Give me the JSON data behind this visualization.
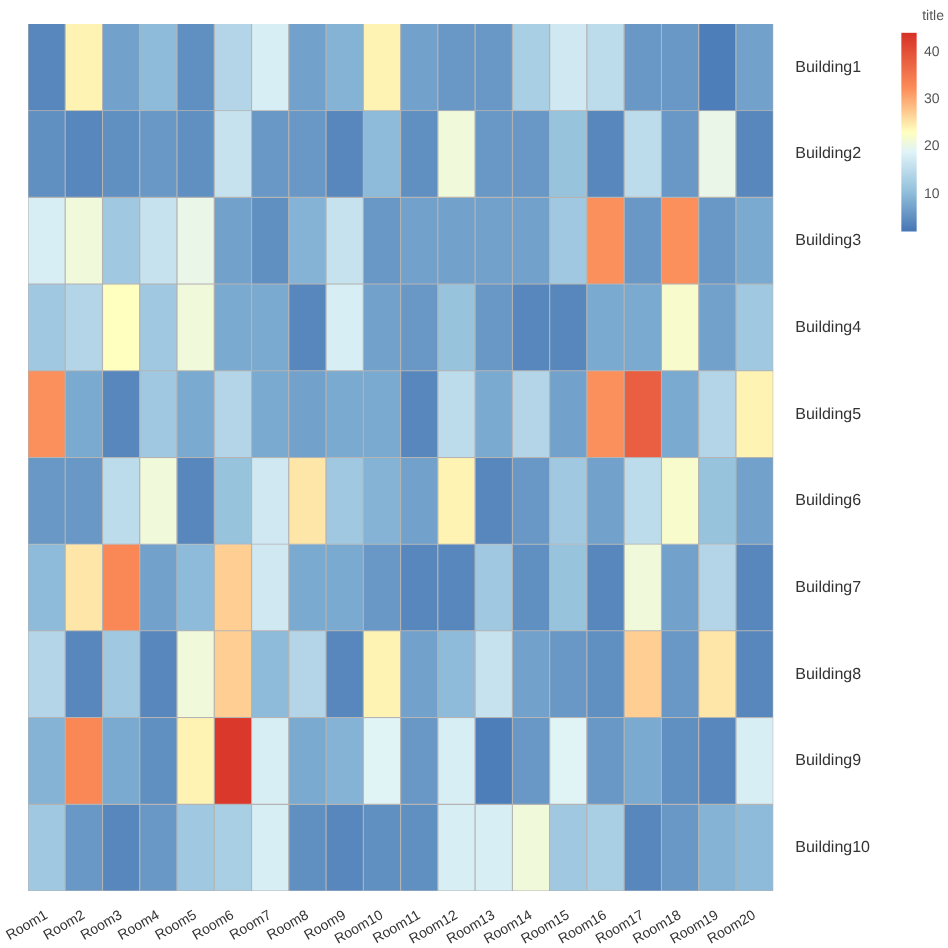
{
  "chart_data": {
    "type": "heatmap",
    "clabel": "title",
    "categories": [
      "Room1",
      "Room2",
      "Room3",
      "Room4",
      "Room5",
      "Room6",
      "Room7",
      "Room8",
      "Room9",
      "Room10",
      "Room11",
      "Room12",
      "Room13",
      "Room14",
      "Room15",
      "Room16",
      "Room17",
      "Room18",
      "Room19",
      "Room20"
    ],
    "y_categories": [
      "Building1",
      "Building2",
      "Building3",
      "Building4",
      "Building5",
      "Building6",
      "Building7",
      "Building8",
      "Building9",
      "Building10"
    ],
    "cells": [
      [
        4,
        24,
        7,
        10,
        5,
        14,
        18,
        7,
        9,
        24,
        7,
        6,
        6,
        13,
        17,
        15,
        6,
        6,
        3,
        7
      ],
      [
        5,
        4,
        5,
        6,
        5,
        16,
        6,
        6,
        4,
        10,
        5,
        21,
        6,
        6,
        11,
        4,
        15,
        6,
        20,
        4
      ],
      [
        18,
        21,
        12,
        16,
        20,
        7,
        5,
        9,
        16,
        6,
        7,
        7,
        7,
        7,
        12,
        32,
        6,
        32,
        6,
        8
      ],
      [
        12,
        14,
        23,
        12,
        21,
        8,
        8,
        4,
        18,
        7,
        6,
        11,
        6,
        4,
        4,
        8,
        8,
        22,
        7,
        12
      ],
      [
        32,
        8,
        4,
        12,
        8,
        14,
        8,
        7,
        8,
        8,
        4,
        15,
        8,
        14,
        7,
        32,
        38,
        8,
        14,
        24
      ],
      [
        6,
        6,
        15,
        21,
        4,
        11,
        17,
        25,
        12,
        9,
        7,
        24,
        4,
        6,
        12,
        7,
        15,
        22,
        11,
        7
      ],
      [
        10,
        25,
        33,
        7,
        10,
        27,
        17,
        8,
        8,
        6,
        4,
        4,
        12,
        5,
        11,
        4,
        21,
        7,
        14,
        4
      ],
      [
        14,
        4,
        12,
        4,
        21,
        27,
        10,
        14,
        4,
        24,
        7,
        10,
        16,
        7,
        6,
        5,
        27,
        6,
        25,
        4
      ],
      [
        9,
        33,
        8,
        5,
        24,
        43,
        18,
        8,
        9,
        19,
        6,
        18,
        3,
        6,
        19,
        6,
        8,
        5,
        4,
        18
      ],
      [
        12,
        6,
        4,
        6,
        12,
        13,
        18,
        5,
        4,
        5,
        5,
        18,
        18,
        21,
        12,
        13,
        4,
        6,
        9,
        10
      ]
    ],
    "clim": [
      2,
      44
    ],
    "cticks": [
      10,
      20,
      30,
      40
    ]
  }
}
